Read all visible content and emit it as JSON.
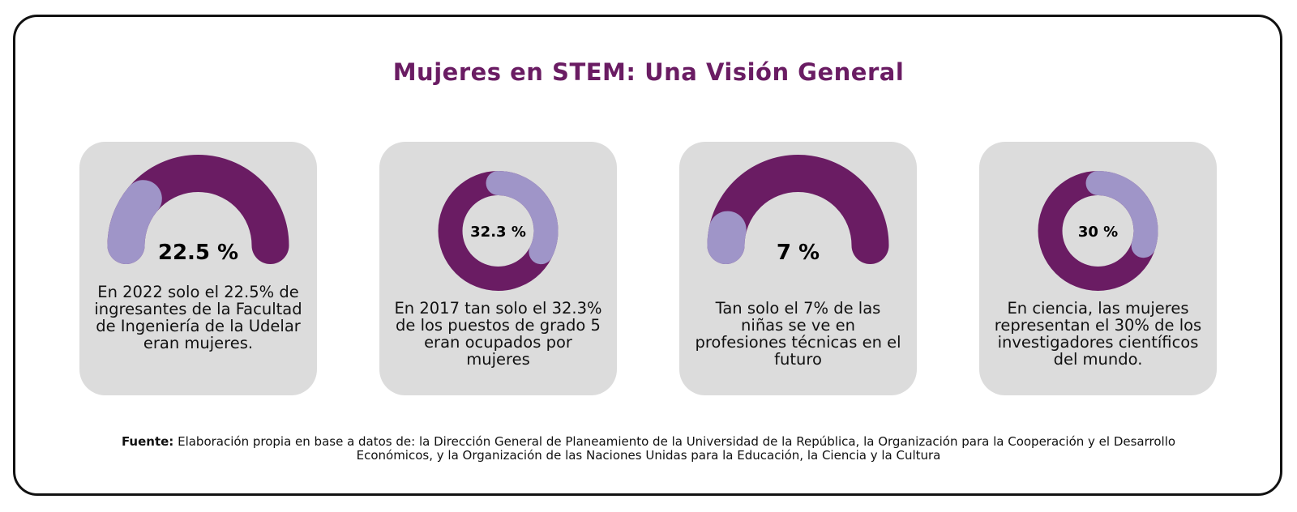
{
  "title": "Mujeres en STEM: Una Visión General",
  "colors": {
    "primary": "#6a1c63",
    "secondary": "#9f95c8",
    "card": "#dcdcdc"
  },
  "source": {
    "label": "Fuente:",
    "text": "Elaboración propia en base a datos de: la Dirección General de Planeamiento de la Universidad de la República, la Organización para la Cooperación y el Desarrollo Económicos, y la Organización de las Naciones Unidas para la Educación, la Ciencia y la Cultura"
  },
  "chart_data": [
    {
      "type": "gauge",
      "value": 22.5,
      "value_label": "22.5 %",
      "caption": "En 2022 solo el 22.5% de ingresantes de la Facultad de Ingeniería de la Udelar eran mujeres."
    },
    {
      "type": "donut",
      "value": 32.3,
      "value_label": "32.3 %",
      "caption": "En 2017 tan solo el 32.3% de los puestos de grado 5 eran ocupados por mujeres"
    },
    {
      "type": "gauge",
      "value": 7,
      "value_label": "7 %",
      "caption": "Tan solo el 7% de las niñas se ve en profesiones técnicas en el futuro"
    },
    {
      "type": "donut",
      "value": 30,
      "value_label": "30 %",
      "caption": "En ciencia, las mujeres representan el 30% de los investigadores científicos del mundo."
    }
  ]
}
